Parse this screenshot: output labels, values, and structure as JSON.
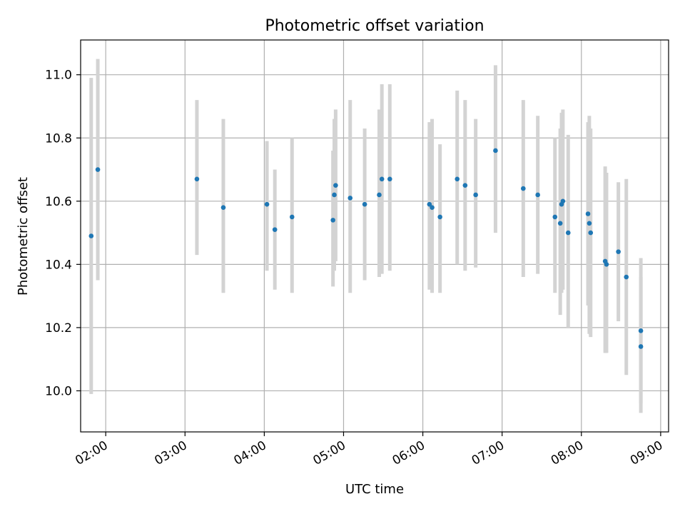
{
  "chart_data": {
    "type": "scatter",
    "title": "Photometric offset variation",
    "xlabel": "UTC time",
    "ylabel": "Photometric offset",
    "x_tick_labels": [
      "02:00",
      "03:00",
      "04:00",
      "05:00",
      "06:00",
      "07:00",
      "08:00",
      "09:00"
    ],
    "y_tick_labels": [
      "10.0",
      "10.2",
      "10.4",
      "10.6",
      "10.8",
      "11.0"
    ],
    "y_ticks": [
      10.0,
      10.2,
      10.4,
      10.6,
      10.8,
      11.0
    ],
    "xlim": [
      "01:41",
      "09:06"
    ],
    "ylim": [
      9.87,
      11.11
    ],
    "grid": true,
    "marker_color": "#1f77b4",
    "errorbar_color": "#d3d3d3",
    "points": [
      {
        "x": "01:49",
        "y": 10.49,
        "yerr_low": 9.99,
        "yerr_high": 10.99
      },
      {
        "x": "01:54",
        "y": 10.7,
        "yerr_low": 10.35,
        "yerr_high": 11.05
      },
      {
        "x": "03:09",
        "y": 10.67,
        "yerr_low": 10.43,
        "yerr_high": 10.92
      },
      {
        "x": "03:29",
        "y": 10.58,
        "yerr_low": 10.31,
        "yerr_high": 10.86
      },
      {
        "x": "04:02",
        "y": 10.59,
        "yerr_low": 10.38,
        "yerr_high": 10.79
      },
      {
        "x": "04:08",
        "y": 10.51,
        "yerr_low": 10.32,
        "yerr_high": 10.7
      },
      {
        "x": "04:21",
        "y": 10.55,
        "yerr_low": 10.31,
        "yerr_high": 10.8
      },
      {
        "x": "04:52",
        "y": 10.54,
        "yerr_low": 10.33,
        "yerr_high": 10.76
      },
      {
        "x": "04:53",
        "y": 10.62,
        "yerr_low": 10.38,
        "yerr_high": 10.86
      },
      {
        "x": "04:54",
        "y": 10.65,
        "yerr_low": 10.41,
        "yerr_high": 10.89
      },
      {
        "x": "05:05",
        "y": 10.61,
        "yerr_low": 10.31,
        "yerr_high": 10.92
      },
      {
        "x": "05:16",
        "y": 10.59,
        "yerr_low": 10.35,
        "yerr_high": 10.83
      },
      {
        "x": "05:27",
        "y": 10.62,
        "yerr_low": 10.36,
        "yerr_high": 10.89
      },
      {
        "x": "05:29",
        "y": 10.67,
        "yerr_low": 10.37,
        "yerr_high": 10.97
      },
      {
        "x": "05:35",
        "y": 10.67,
        "yerr_low": 10.38,
        "yerr_high": 10.97
      },
      {
        "x": "06:05",
        "y": 10.59,
        "yerr_low": 10.32,
        "yerr_high": 10.85
      },
      {
        "x": "06:07",
        "y": 10.58,
        "yerr_low": 10.31,
        "yerr_high": 10.86
      },
      {
        "x": "06:13",
        "y": 10.55,
        "yerr_low": 10.31,
        "yerr_high": 10.78
      },
      {
        "x": "06:26",
        "y": 10.67,
        "yerr_low": 10.4,
        "yerr_high": 10.95
      },
      {
        "x": "06:32",
        "y": 10.65,
        "yerr_low": 10.38,
        "yerr_high": 10.92
      },
      {
        "x": "06:40",
        "y": 10.62,
        "yerr_low": 10.39,
        "yerr_high": 10.86
      },
      {
        "x": "06:55",
        "y": 10.76,
        "yerr_low": 10.5,
        "yerr_high": 11.03
      },
      {
        "x": "07:16",
        "y": 10.64,
        "yerr_low": 10.36,
        "yerr_high": 10.92
      },
      {
        "x": "07:27",
        "y": 10.62,
        "yerr_low": 10.37,
        "yerr_high": 10.87
      },
      {
        "x": "07:40",
        "y": 10.55,
        "yerr_low": 10.31,
        "yerr_high": 10.8
      },
      {
        "x": "07:44",
        "y": 10.53,
        "yerr_low": 10.24,
        "yerr_high": 10.83
      },
      {
        "x": "07:45",
        "y": 10.59,
        "yerr_low": 10.31,
        "yerr_high": 10.88
      },
      {
        "x": "07:46",
        "y": 10.6,
        "yerr_low": 10.32,
        "yerr_high": 10.89
      },
      {
        "x": "07:50",
        "y": 10.5,
        "yerr_low": 10.2,
        "yerr_high": 10.81
      },
      {
        "x": "08:05",
        "y": 10.56,
        "yerr_low": 10.27,
        "yerr_high": 10.85
      },
      {
        "x": "08:06",
        "y": 10.53,
        "yerr_low": 10.18,
        "yerr_high": 10.87
      },
      {
        "x": "08:07",
        "y": 10.5,
        "yerr_low": 10.17,
        "yerr_high": 10.83
      },
      {
        "x": "08:18",
        "y": 10.41,
        "yerr_low": 10.12,
        "yerr_high": 10.71
      },
      {
        "x": "08:28",
        "y": 10.44,
        "yerr_low": 10.22,
        "yerr_high": 10.66
      },
      {
        "x": "08:34",
        "y": 10.36,
        "yerr_low": 10.05,
        "yerr_high": 10.67
      },
      {
        "x": "08:45",
        "y": 10.19,
        "yerr_low": 9.96,
        "yerr_high": 10.42
      },
      {
        "x": "08:45",
        "y": 10.14,
        "yerr_low": 9.93,
        "yerr_high": 10.36
      },
      {
        "x": "08:19",
        "y": 10.4,
        "yerr_low": 10.12,
        "yerr_high": 10.69
      }
    ]
  }
}
